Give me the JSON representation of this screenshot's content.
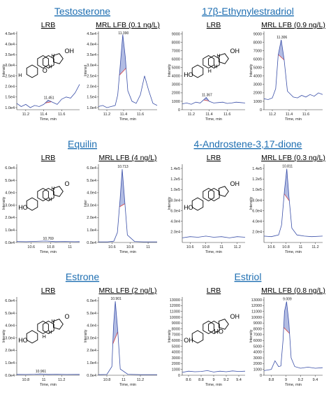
{
  "chart_data": [
    {
      "compound": "Testosterone",
      "structure_labels": [
        "OH",
        "H",
        "H",
        "H",
        "O"
      ],
      "panels": [
        {
          "label": "LRB",
          "type": "line",
          "xlabel": "Time, min",
          "ylabel": "Intensity",
          "xticks": [
            11.2,
            11.4,
            11.6
          ],
          "xlim": [
            11.1,
            11.8
          ],
          "yticks": [
            1.0,
            1.5,
            2.0,
            2.5,
            3.0,
            3.5,
            4.0,
            4.5
          ],
          "ytick_suffix": "e4",
          "ylim": [
            0.9,
            4.6
          ],
          "peak": {
            "x": 11.451,
            "y": 1.35,
            "label": "11.451",
            "width": 0.07
          },
          "baseline": 1.0,
          "noise": 0.08,
          "x": [
            11.1,
            11.15,
            11.2,
            11.25,
            11.3,
            11.35,
            11.4,
            11.45,
            11.5,
            11.55,
            11.6,
            11.65,
            11.7,
            11.75,
            11.8
          ],
          "y": [
            1.2,
            1.05,
            1.15,
            1.0,
            1.1,
            1.05,
            1.15,
            1.35,
            1.25,
            1.15,
            1.4,
            1.5,
            1.45,
            1.7,
            2.1
          ]
        },
        {
          "label": "MRL LFB (0.1 ng/L)",
          "type": "line",
          "xlabel": "Time, min",
          "ylabel": "Intensit",
          "xticks": [
            11.2,
            11.4,
            11.6
          ],
          "xlim": [
            11.1,
            11.8
          ],
          "yticks": [
            1.0,
            1.5,
            2.0,
            2.5,
            3.0,
            3.5,
            4.0,
            4.5
          ],
          "ytick_suffix": "e4",
          "ylim": [
            0.9,
            4.6
          ],
          "peak": {
            "x": 11.39,
            "y": 4.45,
            "label": "11.390",
            "width": 0.08
          },
          "baseline": 1.0,
          "x": [
            11.1,
            11.15,
            11.2,
            11.25,
            11.3,
            11.33,
            11.36,
            11.39,
            11.42,
            11.45,
            11.5,
            11.55,
            11.6,
            11.65,
            11.7,
            11.75,
            11.8
          ],
          "y": [
            1.05,
            1.1,
            1.0,
            1.05,
            1.1,
            1.6,
            3.0,
            4.45,
            3.4,
            1.8,
            1.3,
            1.2,
            1.6,
            2.5,
            1.8,
            1.2,
            1.1
          ]
        }
      ]
    },
    {
      "compound": "17β-Ethynylestradriol",
      "structure_labels": [
        "OH",
        "HO",
        "H",
        "H",
        "H"
      ],
      "panels": [
        {
          "label": "LRB",
          "type": "line",
          "xlabel": "Time, min",
          "ylabel": "Intensity",
          "xticks": [
            11.2,
            11.4,
            11.6
          ],
          "xlim": [
            11.1,
            11.8
          ],
          "yticks": [
            0,
            1000,
            2000,
            3000,
            4000,
            5000,
            6000,
            7000,
            8000,
            9000
          ],
          "ytick_suffix": "",
          "ylim": [
            0,
            9300
          ],
          "peak": {
            "x": 11.367,
            "y": 1450,
            "label": "11.367",
            "width": 0.06
          },
          "x": [
            11.1,
            11.15,
            11.2,
            11.25,
            11.3,
            11.33,
            11.367,
            11.4,
            11.45,
            11.5,
            11.55,
            11.6,
            11.65,
            11.7,
            11.75,
            11.8
          ],
          "y": [
            700,
            800,
            650,
            900,
            800,
            1100,
            1450,
            1000,
            800,
            850,
            900,
            750,
            800,
            900,
            850,
            800
          ]
        },
        {
          "label": "MRL LFB (0.9 ng/L)",
          "type": "line",
          "xlabel": "Time, min",
          "ylabel": "Intensity",
          "xticks": [
            11.2,
            11.4,
            11.6
          ],
          "xlim": [
            11.1,
            11.8
          ],
          "yticks": [
            0,
            1000,
            2000,
            3000,
            4000,
            5000,
            6000,
            7000,
            8000,
            9000
          ],
          "ytick_suffix": "",
          "ylim": [
            0,
            9300
          ],
          "peak": {
            "x": 11.306,
            "y": 8300,
            "label": "11.306",
            "width": 0.07
          },
          "x": [
            11.1,
            11.15,
            11.2,
            11.24,
            11.27,
            11.306,
            11.34,
            11.38,
            11.45,
            11.5,
            11.55,
            11.6,
            11.65,
            11.7,
            11.75,
            11.8
          ],
          "y": [
            1300,
            1200,
            1400,
            2500,
            6500,
            8300,
            6000,
            2200,
            1500,
            1400,
            1700,
            1500,
            1800,
            1600,
            2000,
            1800
          ]
        }
      ]
    },
    {
      "compound": "Equilin",
      "structure_labels": [
        "O",
        "HO",
        "H",
        "H"
      ],
      "panels": [
        {
          "label": "LRB",
          "type": "line",
          "xlabel": "Time, min",
          "ylabel": "Intensity",
          "xticks": [
            10.6,
            10.8,
            11.0
          ],
          "xlim": [
            10.45,
            11.1
          ],
          "yticks": [
            0,
            1,
            2,
            3,
            4,
            5,
            6
          ],
          "ytick_suffix": "e4",
          "ylim": [
            0,
            6.3
          ],
          "peak": {
            "x": 10.769,
            "y": 0.12,
            "label": "10.769",
            "width": 0.05
          },
          "x": [
            10.45,
            10.55,
            10.65,
            10.75,
            10.85,
            10.95,
            11.05,
            11.1
          ],
          "y": [
            0.08,
            0.06,
            0.09,
            0.12,
            0.07,
            0.08,
            0.06,
            0.07
          ]
        },
        {
          "label": "MRL LFB (4 ng/L)",
          "type": "line",
          "xlabel": "Time, min",
          "ylabel": "Inter",
          "xticks": [
            10.6,
            10.8,
            11.0
          ],
          "xlim": [
            10.45,
            11.1
          ],
          "yticks": [
            0,
            1,
            2,
            3,
            4,
            5,
            6
          ],
          "ytick_suffix": "e4",
          "ylim": [
            0,
            6.3
          ],
          "peak": {
            "x": 10.713,
            "y": 5.9,
            "label": "10.713",
            "width": 0.06
          },
          "x": [
            10.45,
            10.55,
            10.62,
            10.66,
            10.69,
            10.713,
            10.74,
            10.77,
            10.85,
            10.95,
            11.1
          ],
          "y": [
            0.05,
            0.05,
            0.1,
            0.8,
            3.5,
            5.9,
            3.4,
            0.6,
            0.08,
            0.05,
            0.05
          ]
        }
      ]
    },
    {
      "compound": "4-Androstene-3,17-dione",
      "structure_labels": [
        "OH",
        "HO"
      ],
      "panels": [
        {
          "label": "LRB",
          "type": "line",
          "xlabel": "Time, min",
          "ylabel": "Intensity",
          "xticks": [
            10.6,
            10.8,
            11.0,
            11.2
          ],
          "xlim": [
            10.5,
            11.3
          ],
          "yticks": [
            2.0,
            4.0,
            6.0,
            8.0,
            1.0,
            1.2,
            1.4
          ],
          "ytick_labels": [
            "2.0e4",
            "4.0e4",
            "6.0e4",
            "8.0e4",
            "1.0e5",
            "1.2e5",
            "1.4e5"
          ],
          "ylim": [
            1.5,
            15
          ],
          "x": [
            10.5,
            10.6,
            10.7,
            10.8,
            10.9,
            11.0,
            11.1,
            11.2,
            11.3
          ],
          "y": [
            2.3,
            2.5,
            2.4,
            2.6,
            2.4,
            2.5,
            2.3,
            2.5,
            2.4
          ]
        },
        {
          "label": "MRL LFB (0.3 ng/L)",
          "type": "line",
          "xlabel": "Time, min",
          "ylabel": "Intensity",
          "xticks": [
            10.6,
            10.8,
            11.0,
            11.2
          ],
          "xlim": [
            10.5,
            11.3
          ],
          "yticks": [
            2.0,
            4.0,
            6.0,
            8.0,
            1.0,
            1.2,
            1.4
          ],
          "ytick_labels": [
            "2.0e4",
            "4.0e4",
            "6.0e4",
            "8.0e4",
            "1.0e5",
            "1.2e5",
            "1.4e5"
          ],
          "ylim": [
            1.5,
            15
          ],
          "peak": {
            "x": 10.811,
            "y": 14.2,
            "label": "10.811",
            "width": 0.07
          },
          "x": [
            10.5,
            10.6,
            10.7,
            10.74,
            10.78,
            10.811,
            10.84,
            10.88,
            10.95,
            11.05,
            11.15,
            11.3
          ],
          "y": [
            2.6,
            2.5,
            2.8,
            4.5,
            10.5,
            14.2,
            9.5,
            4.0,
            2.8,
            2.6,
            2.5,
            2.6
          ]
        }
      ]
    },
    {
      "compound": "Estrone",
      "structure_labels": [
        "O",
        "HO",
        "H",
        "H",
        "H"
      ],
      "panels": [
        {
          "label": "LRB",
          "type": "line",
          "xlabel": "Time, min",
          "ylabel": "Intensity",
          "xticks": [
            10.8,
            11.0,
            11.2
          ],
          "xlim": [
            10.7,
            11.4
          ],
          "yticks": [
            0,
            1,
            2,
            3,
            4,
            5,
            6
          ],
          "ytick_suffix": "e4",
          "ylim": [
            0,
            6.3
          ],
          "peak": {
            "x": 10.961,
            "y": 0.1,
            "label": "10.961",
            "width": 0.05
          },
          "x": [
            10.7,
            10.8,
            10.9,
            10.961,
            11.05,
            11.15,
            11.25,
            11.4
          ],
          "y": [
            0.07,
            0.06,
            0.08,
            0.1,
            0.07,
            0.08,
            0.06,
            0.07
          ]
        },
        {
          "label": "MRL LFB (2 ng/L)",
          "type": "line",
          "xlabel": "Time, min",
          "ylabel": "Intensity",
          "xticks": [
            10.8,
            11.0,
            11.2
          ],
          "xlim": [
            10.7,
            11.4
          ],
          "yticks": [
            0,
            1,
            2,
            3,
            4,
            5,
            6
          ],
          "ytick_suffix": "e4",
          "ylim": [
            0,
            6.3
          ],
          "peak": {
            "x": 10.901,
            "y": 5.95,
            "label": "10.901",
            "width": 0.06
          },
          "x": [
            10.7,
            10.8,
            10.86,
            10.88,
            10.901,
            10.93,
            10.96,
            11.05,
            11.2,
            11.4
          ],
          "y": [
            0.05,
            0.06,
            0.7,
            4.0,
            5.95,
            3.6,
            0.5,
            0.08,
            0.05,
            0.05
          ]
        }
      ]
    },
    {
      "compound": "Estriol",
      "structure_labels": [
        "OH",
        "OH",
        "HO"
      ],
      "panels": [
        {
          "label": "LRB",
          "type": "line",
          "xlabel": "Time, min",
          "ylabel": "Intensity",
          "xticks": [
            8.6,
            8.8,
            9.0,
            9.2,
            9.4
          ],
          "xlim": [
            8.5,
            9.5
          ],
          "yticks": [
            0,
            1000,
            2000,
            3000,
            4000,
            5000,
            6000,
            7000,
            8000,
            9000,
            10000,
            11000,
            12000,
            13000
          ],
          "ytick_suffix": "",
          "ylim": [
            0,
            13500
          ],
          "x": [
            8.5,
            8.6,
            8.7,
            8.8,
            8.9,
            9.0,
            9.1,
            9.2,
            9.3,
            9.4,
            9.5
          ],
          "y": [
            500,
            700,
            600,
            650,
            800,
            550,
            700,
            600,
            750,
            650,
            700
          ]
        },
        {
          "label": "MRL LFB (0.8 ng/L)",
          "type": "line",
          "xlabel": "Time, min",
          "ylabel": "Intensity",
          "xticks": [
            8.8,
            9.0,
            9.2,
            9.4
          ],
          "xlim": [
            8.7,
            9.5
          ],
          "yticks": [
            0,
            1000,
            2000,
            3000,
            4000,
            5000,
            6000,
            7000,
            8000,
            9000,
            10000,
            11000,
            12000,
            13000
          ],
          "ytick_suffix": "",
          "ylim": [
            0,
            13500
          ],
          "peak": {
            "x": 9.009,
            "y": 12700,
            "label": "9.009",
            "width": 0.08
          },
          "x": [
            8.7,
            8.75,
            8.8,
            8.85,
            8.9,
            8.93,
            8.96,
            8.98,
            9.009,
            9.04,
            9.07,
            9.12,
            9.2,
            9.3,
            9.4,
            9.5
          ],
          "y": [
            800,
            900,
            1000,
            2500,
            1500,
            1600,
            6000,
            11000,
            12700,
            9000,
            3000,
            1500,
            1200,
            1400,
            1200,
            1300
          ]
        }
      ]
    }
  ],
  "colors": {
    "title": "#1f6fb2",
    "trace": "#3a4fa8",
    "fill": "#aab5e0",
    "baseline": "#d94040"
  }
}
